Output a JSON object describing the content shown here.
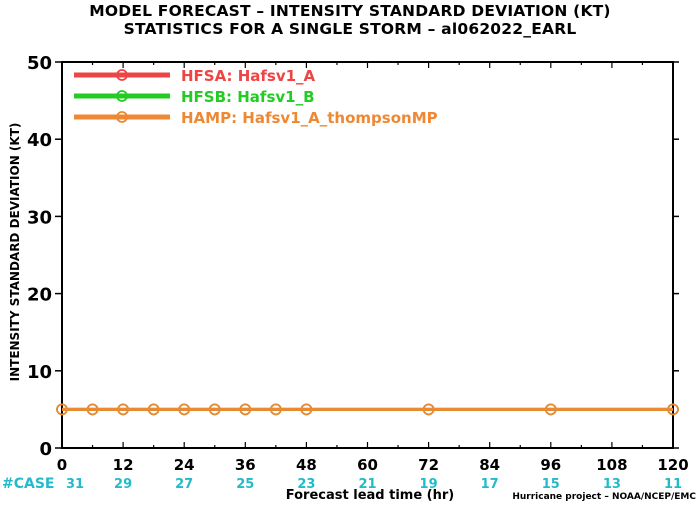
{
  "chart_data": {
    "type": "line",
    "title": "MODEL FORECAST – INTENSITY STANDARD DEVIATION (KT)",
    "subtitle": "STATISTICS FOR A SINGLE STORM – al062022_EARL",
    "xlabel": "Forecast lead time (hr)",
    "ylabel": "INTENSITY STANDARD DEVIATION (KT)",
    "xlim": [
      0,
      120
    ],
    "ylim": [
      0,
      50
    ],
    "x_ticks": [
      0,
      12,
      24,
      36,
      48,
      60,
      72,
      84,
      96,
      108,
      120
    ],
    "y_ticks": [
      0,
      10,
      20,
      30,
      40,
      50
    ],
    "legend_position": "top-left",
    "grid": false,
    "case_label": "#CASE",
    "cases": [
      31,
      29,
      27,
      25,
      23,
      21,
      19,
      17,
      15,
      13,
      11
    ],
    "credit": "Hurricane project – NOAA/NCEP/EMC",
    "series": [
      {
        "name": "HFSA: Hafsv1_A",
        "color": "#ee4444",
        "x": [
          0,
          6,
          12,
          18,
          24,
          30,
          36,
          42,
          48,
          72,
          96,
          120
        ],
        "values": [
          5,
          5,
          5,
          5,
          5,
          5,
          5,
          5,
          5,
          5,
          5,
          5
        ]
      },
      {
        "name": "HFSB: Hafsv1_B",
        "color": "#22cc22",
        "x": [
          0,
          6,
          12,
          18,
          24,
          30,
          36,
          42,
          48,
          72,
          96,
          120
        ],
        "values": [
          5,
          5,
          5,
          5,
          5,
          5,
          5,
          5,
          5,
          5,
          5,
          5
        ]
      },
      {
        "name": "HAMP: Hafsv1_A_thompsonMP",
        "color": "#ee8833",
        "x": [
          0,
          6,
          12,
          18,
          24,
          30,
          36,
          42,
          48,
          72,
          96,
          120
        ],
        "values": [
          5,
          5,
          5,
          5,
          5,
          5,
          5,
          5,
          5,
          5,
          5,
          5
        ]
      }
    ],
    "case_color": "#22bbcc"
  }
}
